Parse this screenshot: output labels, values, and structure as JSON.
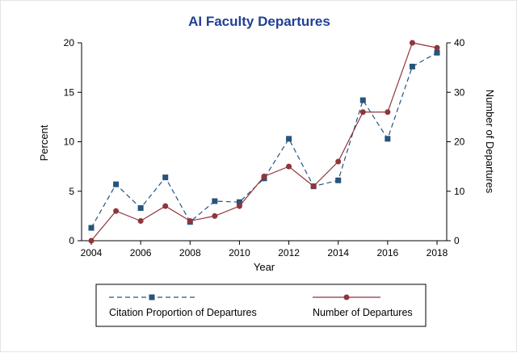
{
  "title": "AI Faculty Departures",
  "colors": {
    "title": "#1f4096",
    "axis": "#000000",
    "citation_series": "#26547c",
    "number_series": "#90353b"
  },
  "chart_data": {
    "type": "line",
    "x": [
      2004,
      2005,
      2006,
      2007,
      2008,
      2009,
      2010,
      2011,
      2012,
      2013,
      2014,
      2015,
      2016,
      2017,
      2018
    ],
    "series": [
      {
        "name": "Citation Proportion of Departures",
        "axis": "left",
        "color": "#26547c",
        "marker": "square",
        "dash": true,
        "values": [
          1.3,
          5.7,
          3.3,
          6.4,
          1.9,
          4.0,
          3.9,
          6.3,
          10.3,
          5.5,
          6.1,
          14.2,
          10.3,
          17.6,
          19.0
        ]
      },
      {
        "name": "Number of Departures",
        "axis": "right",
        "color": "#90353b",
        "marker": "circle",
        "dash": false,
        "values": [
          0,
          6,
          4,
          7,
          4,
          5,
          7,
          13,
          15,
          11,
          16,
          26,
          26,
          40,
          39
        ]
      }
    ],
    "title": "AI Faculty Departures",
    "xlabel": "Year",
    "ylabel_left": "Percent",
    "ylabel_right": "Number of Departures",
    "xticks": [
      2004,
      2006,
      2008,
      2010,
      2012,
      2014,
      2016,
      2018
    ],
    "ylim_left": [
      0,
      20
    ],
    "ylim_right": [
      0,
      40
    ],
    "yticks_left": [
      0,
      5,
      10,
      15,
      20
    ],
    "yticks_right": [
      0,
      10,
      20,
      30,
      40
    ],
    "grid": false,
    "legend_position": "bottom"
  }
}
